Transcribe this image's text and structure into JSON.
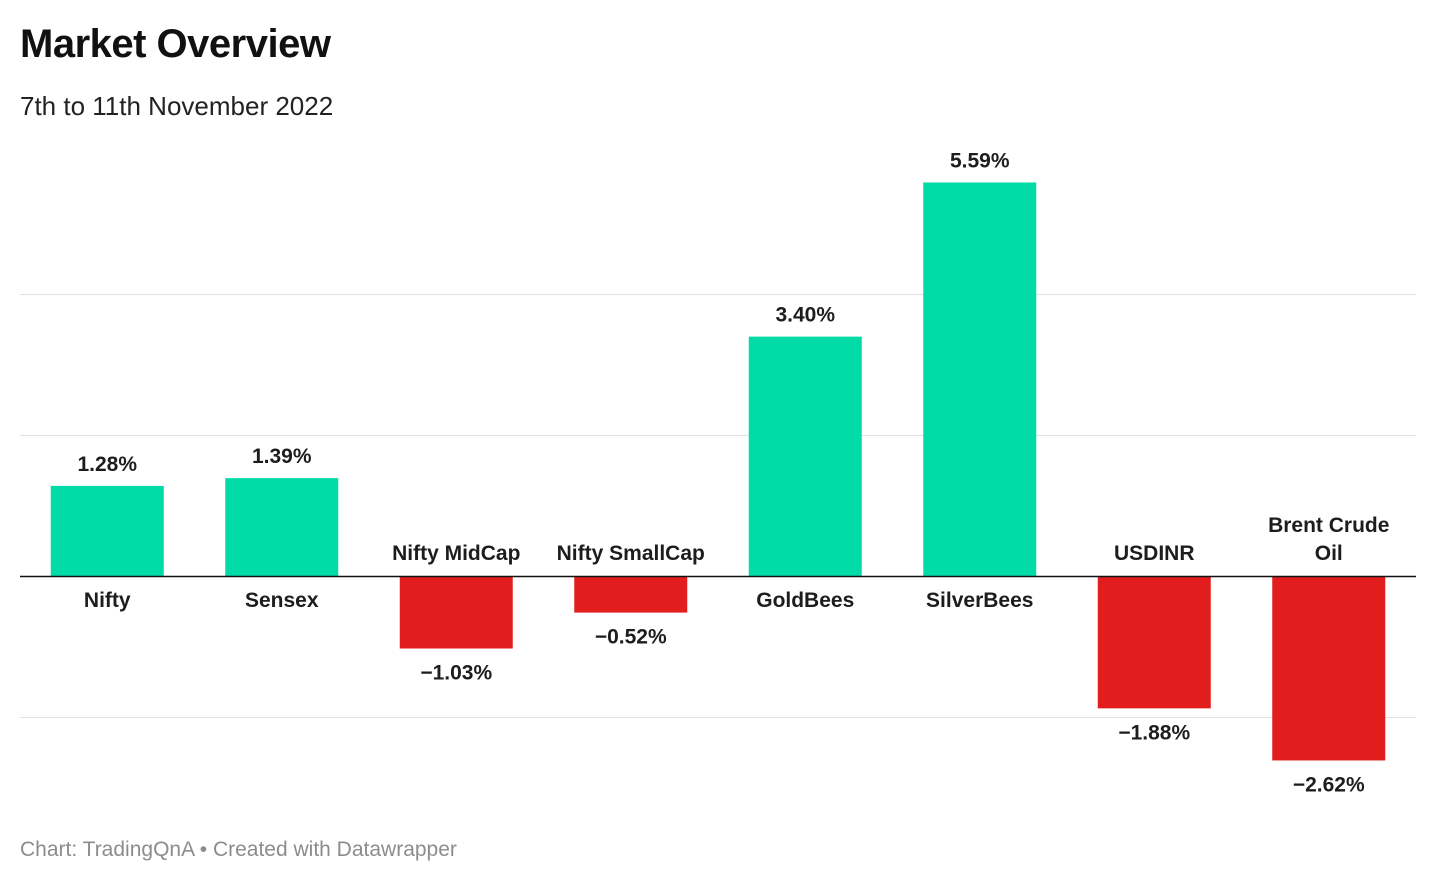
{
  "header": {
    "title": "Market Overview",
    "subtitle": "7th to 11th November 2022"
  },
  "footer": {
    "credit": "Chart: TradingQnA • Created with Datawrapper"
  },
  "colors": {
    "positive": "#00dba8",
    "negative": "#e11d1d",
    "gridline": "#e3e3e3",
    "baseline": "#111111"
  },
  "chart_data": {
    "type": "bar",
    "title": "Market Overview",
    "subtitle": "7th to 11th November 2022",
    "categories": [
      "Nifty",
      "Sensex",
      "Nifty MidCap",
      "Nifty SmallCap",
      "GoldBees",
      "SilverBees",
      "USDINR",
      "Brent Crude Oil"
    ],
    "values": [
      1.28,
      1.39,
      -1.03,
      -0.52,
      3.4,
      5.59,
      -1.88,
      -2.62
    ],
    "value_labels": [
      "1.28%",
      "1.39%",
      "−1.03%",
      "−0.52%",
      "3.40%",
      "5.59%",
      "−1.88%",
      "−2.62%"
    ],
    "gridlines": [
      -2,
      0,
      2,
      4
    ],
    "ylim": [
      -2.62,
      5.59
    ],
    "grid": true,
    "legend": "none"
  }
}
